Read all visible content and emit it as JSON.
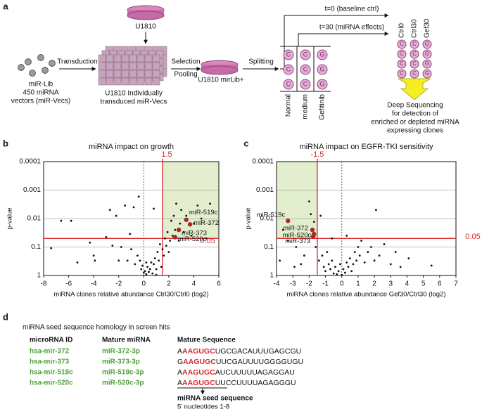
{
  "diagram": {
    "panel_labels": [
      "a",
      "b",
      "c",
      "d"
    ],
    "dish_top": "U1810",
    "library": [
      "miR-Lib",
      "450 miRNA",
      "vectors (miR-Vecs)"
    ],
    "transduction": "Transduction",
    "plates": [
      "U1810 Individually",
      "transduced miR-Vecs"
    ],
    "selection": [
      "Selection",
      "Pooling"
    ],
    "pool": "U1810 mirLib+",
    "splitting": "Splitting",
    "t0": "t=0 (baseline ctrl)",
    "t30": "t=30 (miRNA effects)",
    "split_columns": [
      "Normal",
      "medium",
      "Gefitinib"
    ],
    "split_tubes": [
      [
        "C",
        "C",
        "C"
      ],
      [
        "C",
        "C",
        "C"
      ],
      [
        "G",
        "G",
        "G"
      ]
    ],
    "seq_columns": [
      "Ctrl0",
      "Ctrl30",
      "Gef30"
    ],
    "seq_tubes": [
      [
        "C",
        "C",
        "C",
        "C"
      ],
      [
        "C",
        "C",
        "C",
        "C"
      ],
      [
        "G",
        "G",
        "G",
        "G"
      ]
    ],
    "sequencing": [
      "Deep Sequencing",
      "for detection of",
      "enriched or depleted miRNA",
      "expressing clones"
    ]
  },
  "chart_data": [
    {
      "type": "scatter",
      "title": "miRNA impact on growth",
      "x_label": "miRNA clones relative abundance Ctrl30/Ctrl0 (log2)",
      "y_label": "p-value",
      "xlim": [
        -8,
        6
      ],
      "xticks": [
        -8,
        -6,
        -4,
        -2,
        0,
        2,
        4,
        6
      ],
      "ylim": [
        1,
        0.0001
      ],
      "yticks": [
        0.0001,
        0.001,
        0.01,
        0.1,
        1
      ],
      "log_y": true,
      "grid": true,
      "vline": 1.5,
      "hline": 0.05,
      "highlight_side": "right",
      "threshold_color": "#d9262b",
      "shade_color": "#e2eecd",
      "series": [
        {
          "color": "#111111",
          "x": [
            -7.4,
            -6.6,
            -5.8,
            -5.3,
            -4.3,
            -4.0,
            -3.9,
            -3.0,
            -2.7,
            -2.5,
            -2.2,
            -2.0,
            -1.8,
            -1.5,
            -1.3,
            -1.1,
            -1.0,
            -0.8,
            -0.7,
            -0.5,
            -0.4,
            -0.3,
            -0.2,
            -0.1,
            0,
            0.1,
            0.2,
            0.3,
            0.4,
            0.5,
            0.6,
            0.7,
            0.8,
            0.9,
            1.0,
            1.1,
            1.2,
            1.3,
            1.4,
            1.5,
            1.6,
            1.7,
            1.8,
            1.9,
            2.0,
            2.1,
            2.2,
            2.3,
            2.4,
            2.5,
            2.6,
            2.8,
            2.9,
            3.0,
            3.2,
            3.4,
            3.8,
            4.0,
            4.3,
            4.6,
            5.0,
            5.3,
            0.8,
            1.0,
            0.2
          ],
          "values": [
            0.11,
            0.012,
            0.012,
            0.35,
            0.07,
            0.2,
            0.3,
            0.045,
            0.005,
            0.09,
            0.008,
            0.3,
            0.1,
            0.0035,
            0.3,
            0.035,
            0.12,
            0.004,
            0.4,
            0.2,
            0.0017,
            0.3,
            0.6,
            0.45,
            0.8,
            0.7,
            0.9,
            0.5,
            0.75,
            0.6,
            0.35,
            0.85,
            0.4,
            0.25,
            0.6,
            0.15,
            0.3,
            0.08,
            0.5,
            0.12,
            0.2,
            0.05,
            0.09,
            0.03,
            0.15,
            0.06,
            0.012,
            0.04,
            0.008,
            0.025,
            0.003,
            0.06,
            0.015,
            0.005,
            0.03,
            0.008,
            0.04,
            0.015,
            0.0035,
            0.01,
            0.05,
            0.003,
            0.0045,
            0.95,
            0.35
          ]
        },
        {
          "color": "#a52a22",
          "x": [
            3.4,
            3.7,
            2.8,
            2.5
          ],
          "values": [
            0.011,
            0.016,
            0.025,
            0.045
          ],
          "point_labels": [
            "miR-519c",
            "miR-372",
            "miR-373",
            "miR-520c"
          ]
        }
      ]
    },
    {
      "type": "scatter",
      "title": "miRNA impact on EGFR-TKI sensitivity",
      "x_label": "miRNA clones relative abundance Gef30/Ctrl30 (log2)",
      "y_label": "p-value",
      "xlim": [
        -4,
        7
      ],
      "xticks": [
        -4,
        -3,
        -2,
        -1,
        0,
        1,
        2,
        3,
        4,
        5,
        6,
        7
      ],
      "ylim": [
        1,
        0.0001
      ],
      "yticks": [
        0.0001,
        0.001,
        0.01,
        0.1,
        1
      ],
      "log_y": true,
      "grid": true,
      "vline": -1.5,
      "hline": 0.05,
      "highlight_side": "left",
      "threshold_color": "#d9262b",
      "shade_color": "#e2eecd",
      "series": [
        {
          "color": "#111111",
          "x": [
            -3.6,
            -3.3,
            -2.8,
            -2.5,
            -2.3,
            -2.0,
            -1.9,
            -1.7,
            -1.6,
            -1.4,
            -1.3,
            -1.2,
            -1.1,
            -1.0,
            -0.9,
            -0.8,
            -0.7,
            -0.6,
            -0.5,
            -0.4,
            -0.3,
            -0.2,
            -0.1,
            0,
            0.1,
            0.2,
            0.3,
            0.4,
            0.5,
            0.6,
            0.7,
            0.8,
            0.9,
            1.0,
            1.1,
            1.2,
            1.4,
            1.6,
            1.8,
            2.0,
            2.1,
            2.3,
            2.6,
            3.0,
            3.3,
            3.6,
            4.1,
            5.5,
            -0.6,
            0.3,
            -2.9,
            -3.8
          ],
          "values": [
            0.025,
            0.06,
            0.1,
            0.4,
            0.2,
            0.0025,
            0.007,
            0.013,
            0.1,
            0.3,
            0.008,
            0.2,
            0.5,
            0.7,
            0.15,
            0.4,
            0.6,
            0.3,
            0.85,
            0.5,
            0.9,
            0.7,
            0.4,
            0.95,
            0.6,
            0.8,
            0.35,
            0.5,
            0.25,
            0.7,
            0.4,
            0.15,
            0.3,
            0.1,
            0.2,
            0.06,
            0.35,
            0.15,
            0.1,
            0.3,
            0.005,
            0.2,
            0.08,
            0.4,
            0.15,
            0.5,
            0.25,
            0.45,
            0.05,
            0.04,
            0.5,
            0.3
          ]
        },
        {
          "color": "#a52a22",
          "x": [
            -3.3,
            -1.8,
            -1.7,
            -1.75
          ],
          "values": [
            0.012,
            0.025,
            0.035,
            0.042
          ],
          "point_labels": [
            "miR-519c",
            "miR-372",
            "miR-520c",
            "miR-373"
          ]
        }
      ]
    }
  ],
  "table": {
    "title": "miRNA seed sequence homology in screen hits",
    "headers": [
      "microRNA ID",
      "Mature miRNA",
      "Mature Sequence"
    ],
    "rows": [
      [
        "hsa-mir-372",
        "miR-372-3p",
        [
          "A",
          "AAGUGC",
          "UGCGACAUUUGAGCGU"
        ]
      ],
      [
        "hsa-mir-373",
        "miR-373-3p",
        [
          "G",
          "AAGUGC",
          "UUCGAUUUUGGGGUGU"
        ]
      ],
      [
        "hsa-mir-519c",
        "miR-519c-3p",
        [
          "A",
          "AAGUGC",
          "AUCUUUUUAGAGGAU"
        ]
      ],
      [
        "hsa-mir-520c",
        "miR-520c-3p",
        [
          "A",
          "AAGUGC",
          "UUCCUUUUAGAGGGU"
        ]
      ]
    ],
    "seed_title": "miRNA seed sequence",
    "seed_note": "5’ nucleotides 1-8"
  }
}
